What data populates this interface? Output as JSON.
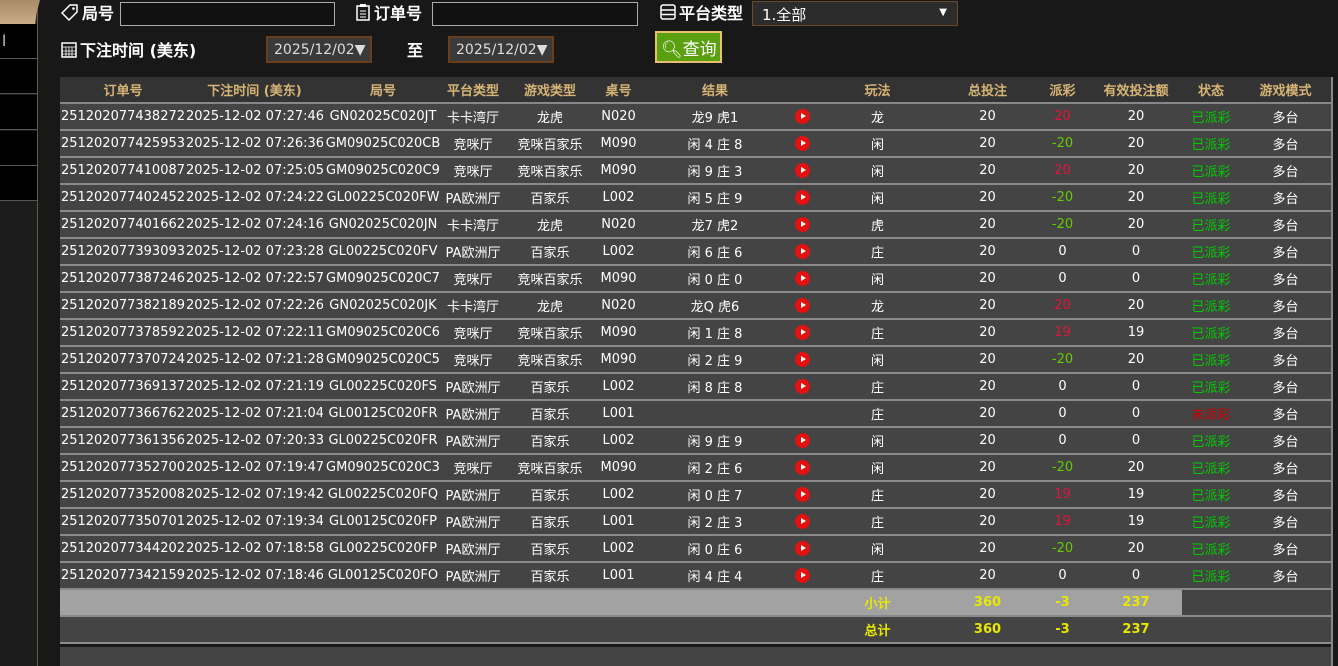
{
  "sidebar": {
    "partial_label": "l"
  },
  "filters": {
    "round_label": "局号",
    "round_value": "",
    "order_label": "订单号",
    "order_value": "",
    "platform_label": "平台类型",
    "platform_value": "1.全部",
    "time_label": "下注时间 (美东)",
    "date_from": "2025/12/02",
    "to_label": "至",
    "date_to": "2025/12/02",
    "query_label": "查询"
  },
  "colors": {
    "header_text": "#d6b476",
    "payout_win": "#e0143c",
    "payout_loss": "#66cc00",
    "status_paid": "#00cc00",
    "status_unpaid": "#cc0000",
    "totals": "#e8e800",
    "query_button": "#5aa010"
  },
  "table": {
    "headers": [
      "订单号",
      "下注时间 (美东)",
      "局号",
      "平台类型",
      "游戏类型",
      "桌号",
      "结果",
      "",
      "玩法",
      "总投注",
      "派彩",
      "有效投注额",
      "状态",
      "游戏模式"
    ],
    "rows": [
      [
        "251202077438272",
        "2025-12-02 07:27:46",
        "GN02025C020JT",
        "卡卡湾厅",
        "龙虎",
        "N020",
        "龙9 虎1",
        "play",
        "龙",
        "20",
        "20",
        "20",
        "已派彩",
        "多台"
      ],
      [
        "251202077425953",
        "2025-12-02 07:26:36",
        "GM09025C020CB",
        "竞咪厅",
        "竞咪百家乐",
        "M090",
        "闲 4 庄 8",
        "play",
        "闲",
        "20",
        "-20",
        "20",
        "已派彩",
        "多台"
      ],
      [
        "251202077410087",
        "2025-12-02 07:25:05",
        "GM09025C020C9",
        "竞咪厅",
        "竞咪百家乐",
        "M090",
        "闲 9 庄 3",
        "play",
        "闲",
        "20",
        "20",
        "20",
        "已派彩",
        "多台"
      ],
      [
        "251202077402452",
        "2025-12-02 07:24:22",
        "GL00225C020FW",
        "PA欧洲厅",
        "百家乐",
        "L002",
        "闲 5 庄 9",
        "play",
        "闲",
        "20",
        "-20",
        "20",
        "已派彩",
        "多台"
      ],
      [
        "251202077401662",
        "2025-12-02 07:24:16",
        "GN02025C020JN",
        "卡卡湾厅",
        "龙虎",
        "N020",
        "龙7 虎2",
        "play",
        "虎",
        "20",
        "-20",
        "20",
        "已派彩",
        "多台"
      ],
      [
        "251202077393093",
        "2025-12-02 07:23:28",
        "GL00225C020FV",
        "PA欧洲厅",
        "百家乐",
        "L002",
        "闲 6 庄 6",
        "play",
        "庄",
        "20",
        "0",
        "0",
        "已派彩",
        "多台"
      ],
      [
        "251202077387246",
        "2025-12-02 07:22:57",
        "GM09025C020C7",
        "竞咪厅",
        "竞咪百家乐",
        "M090",
        "闲 0 庄 0",
        "play",
        "闲",
        "20",
        "0",
        "0",
        "已派彩",
        "多台"
      ],
      [
        "251202077382189",
        "2025-12-02 07:22:26",
        "GN02025C020JK",
        "卡卡湾厅",
        "龙虎",
        "N020",
        "龙Q 虎6",
        "play",
        "龙",
        "20",
        "20",
        "20",
        "已派彩",
        "多台"
      ],
      [
        "251202077378592",
        "2025-12-02 07:22:11",
        "GM09025C020C6",
        "竞咪厅",
        "竞咪百家乐",
        "M090",
        "闲 1 庄 8",
        "play",
        "庄",
        "20",
        "19",
        "19",
        "已派彩",
        "多台"
      ],
      [
        "251202077370724",
        "2025-12-02 07:21:28",
        "GM09025C020C5",
        "竞咪厅",
        "竞咪百家乐",
        "M090",
        "闲 2 庄 9",
        "play",
        "闲",
        "20",
        "-20",
        "20",
        "已派彩",
        "多台"
      ],
      [
        "251202077369137",
        "2025-12-02 07:21:19",
        "GL00225C020FS",
        "PA欧洲厅",
        "百家乐",
        "L002",
        "闲 8 庄 8",
        "play",
        "庄",
        "20",
        "0",
        "0",
        "已派彩",
        "多台"
      ],
      [
        "251202077366762",
        "2025-12-02 07:21:04",
        "GL00125C020FR",
        "PA欧洲厅",
        "百家乐",
        "L001",
        "",
        "",
        "庄",
        "20",
        "0",
        "0",
        "未派彩",
        "多台"
      ],
      [
        "251202077361356",
        "2025-12-02 07:20:33",
        "GL00225C020FR",
        "PA欧洲厅",
        "百家乐",
        "L002",
        "闲 9 庄 9",
        "play",
        "闲",
        "20",
        "0",
        "0",
        "已派彩",
        "多台"
      ],
      [
        "251202077352700",
        "2025-12-02 07:19:47",
        "GM09025C020C3",
        "竞咪厅",
        "竞咪百家乐",
        "M090",
        "闲 2 庄 6",
        "play",
        "闲",
        "20",
        "-20",
        "20",
        "已派彩",
        "多台"
      ],
      [
        "251202077352008",
        "2025-12-02 07:19:42",
        "GL00225C020FQ",
        "PA欧洲厅",
        "百家乐",
        "L002",
        "闲 0 庄 7",
        "play",
        "庄",
        "20",
        "19",
        "19",
        "已派彩",
        "多台"
      ],
      [
        "251202077350701",
        "2025-12-02 07:19:34",
        "GL00125C020FP",
        "PA欧洲厅",
        "百家乐",
        "L001",
        "闲 2 庄 3",
        "play",
        "庄",
        "20",
        "19",
        "19",
        "已派彩",
        "多台"
      ],
      [
        "251202077344202",
        "2025-12-02 07:18:58",
        "GL00225C020FP",
        "PA欧洲厅",
        "百家乐",
        "L002",
        "闲 0 庄 6",
        "play",
        "闲",
        "20",
        "-20",
        "20",
        "已派彩",
        "多台"
      ],
      [
        "251202077342159",
        "2025-12-02 07:18:46",
        "GL00125C020FO",
        "PA欧洲厅",
        "百家乐",
        "L001",
        "闲 4 庄 4",
        "play",
        "庄",
        "20",
        "0",
        "0",
        "已派彩",
        "多台"
      ]
    ],
    "subtotal": {
      "label": "小计",
      "total_bet": "360",
      "payout": "-3",
      "valid_bet": "237"
    },
    "total": {
      "label": "总计",
      "total_bet": "360",
      "payout": "-3",
      "valid_bet": "237"
    }
  }
}
